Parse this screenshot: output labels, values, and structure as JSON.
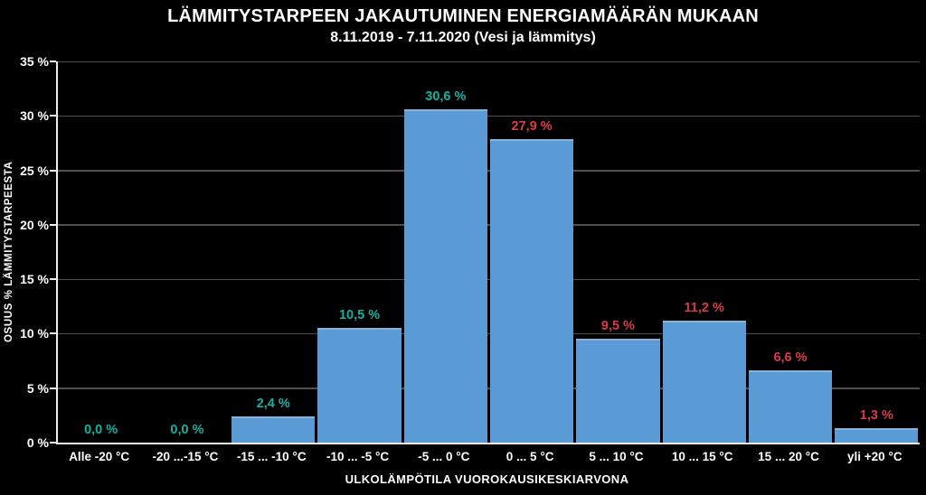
{
  "chart_data": {
    "type": "bar",
    "title": "LÄMMITYSTARPEEN JAKAUTUMINEN ENERGIAMÄÄRÄN MUKAAN",
    "subtitle": "8.11.2019 - 7.11.2020 (Vesi ja lämmitys)",
    "xlabel": "ULKOLÄMPÖTILA VUOROKAUSIKESKIARVONA",
    "ylabel": "OSUUS % LÄMMITYSTARPEESTA",
    "categories": [
      "Alle -20 °C",
      "-20 ...-15 °C",
      "-15 ... -10 °C",
      "-10 ... -5 °C",
      "-5 ... 0 °C",
      "0 ... 5 °C",
      "5 ... 10 °C",
      "10 ... 15 °C",
      "15 ... 20 °C",
      "yli +20 °C"
    ],
    "values": [
      0.0,
      0.0,
      2.4,
      10.5,
      30.6,
      27.9,
      9.5,
      11.2,
      6.6,
      1.3
    ],
    "value_labels": [
      "0,0 %",
      "0,0 %",
      "2,4 %",
      "10,5 %",
      "30,6 %",
      "27,9 %",
      "9,5 %",
      "11,2 %",
      "6,6 %",
      "1,3 %"
    ],
    "value_label_color_keys": [
      "teal",
      "teal",
      "teal",
      "teal",
      "teal",
      "red",
      "red",
      "red",
      "red",
      "red"
    ],
    "ylim": [
      0,
      35
    ],
    "ytick_step": 5,
    "ytick_labels": [
      "0 %",
      "5 %",
      "10 %",
      "15 %",
      "20 %",
      "25 %",
      "30 %",
      "35 %"
    ],
    "grid": true,
    "legend": "none",
    "colors": {
      "background": "#000000",
      "bar_fill": "#5b9bd5",
      "bar_top_edge": "#87b2d9",
      "teal": "#10b2a3",
      "red": "#da3a4a",
      "gridline": "#4f4f4f",
      "axis_line": "#ededed",
      "text": "#ffffff"
    }
  }
}
